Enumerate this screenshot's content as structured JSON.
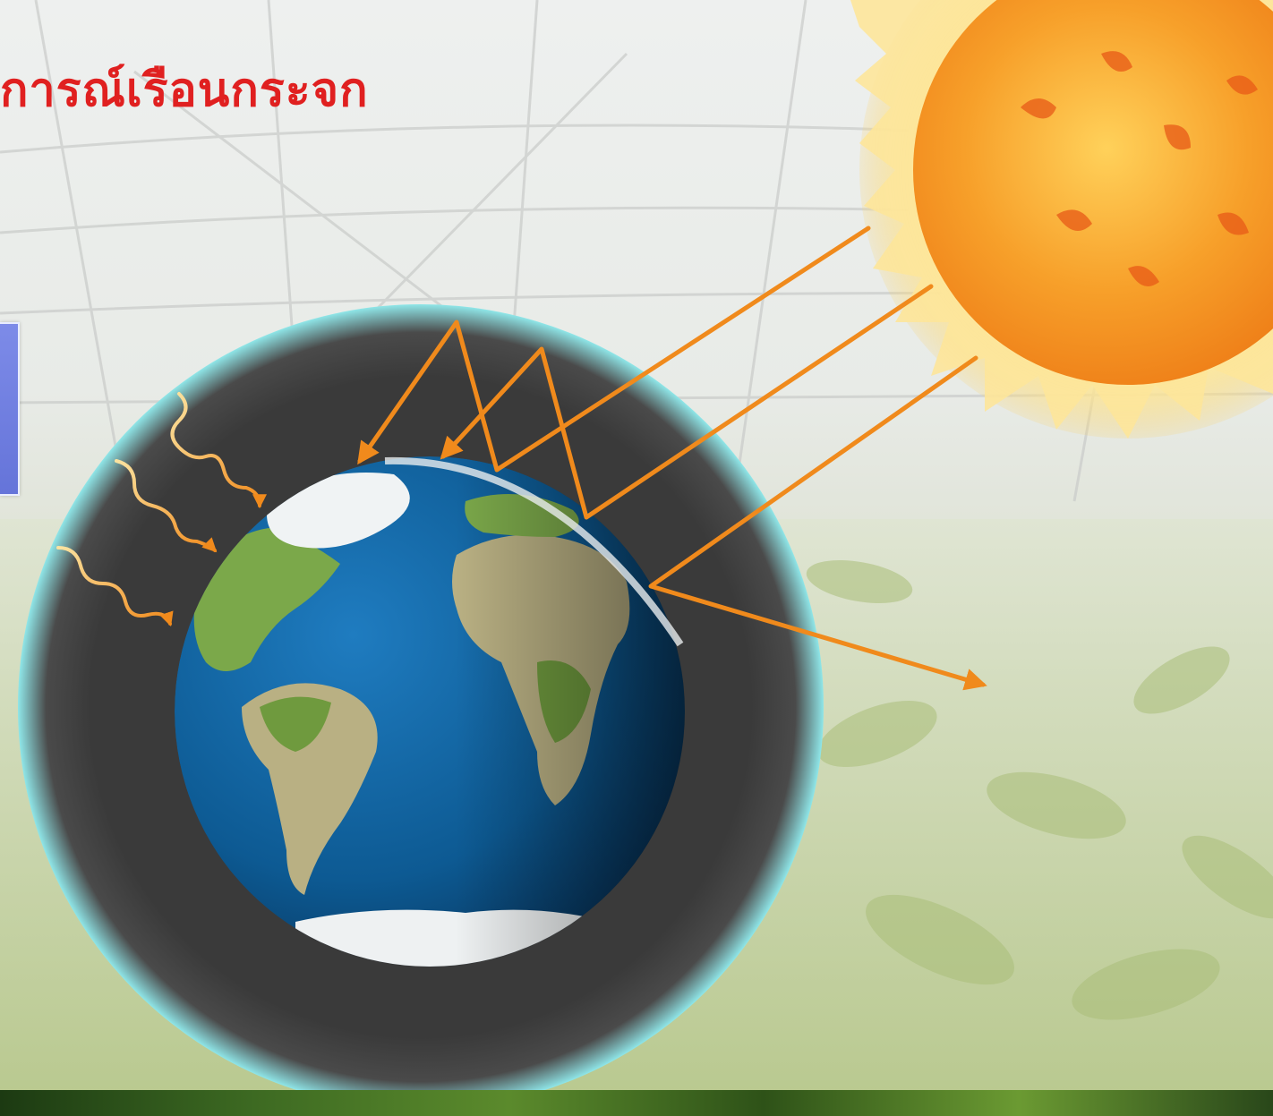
{
  "title": "การณ์เรือนกระจก",
  "icons": {
    "sun": "sun-icon",
    "earth": "earth-globe-icon",
    "atmosphere": "atmosphere-layer",
    "heat_waves": "heat-wave-icon",
    "arrows": "radiation-arrow"
  },
  "colors": {
    "title": "#e02020",
    "arrow": "#f08a1c",
    "atmosphere": "#3e3e3e",
    "atmosphere_glow": "#8fe6e8",
    "ocean": "#0d5a93",
    "land": "#7ba84a",
    "desert": "#b9b083",
    "sun_core": "#f79a1c",
    "sun_rim": "#fde28a",
    "side_box": "#6b79de"
  }
}
